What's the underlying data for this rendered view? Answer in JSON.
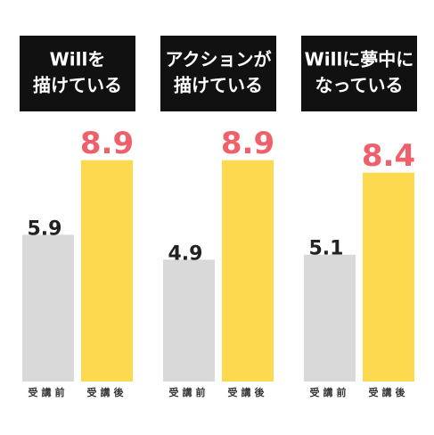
{
  "chart_data": [
    {
      "type": "bar",
      "title": [
        "Willを",
        "描けている"
      ],
      "categories": [
        "受講前",
        "受講後"
      ],
      "values": [
        5.9,
        8.9
      ],
      "colors": [
        "#d9d9d9",
        "#fdd94f"
      ],
      "label_colors": [
        "#222222",
        "#f0606a"
      ],
      "ylim": [
        0,
        10
      ]
    },
    {
      "type": "bar",
      "title": [
        "アクションが",
        "描けている"
      ],
      "categories": [
        "受講前",
        "受講後"
      ],
      "values": [
        4.9,
        8.9
      ],
      "colors": [
        "#d9d9d9",
        "#fdd94f"
      ],
      "label_colors": [
        "#222222",
        "#f0606a"
      ],
      "ylim": [
        0,
        10
      ]
    },
    {
      "type": "bar",
      "title": [
        "Willに夢中に",
        "なっている"
      ],
      "categories": [
        "受講前",
        "受講後"
      ],
      "values": [
        5.1,
        8.4
      ],
      "colors": [
        "#d9d9d9",
        "#fdd94f"
      ],
      "label_colors": [
        "#222222",
        "#f0606a"
      ],
      "ylim": [
        0,
        10
      ]
    }
  ]
}
